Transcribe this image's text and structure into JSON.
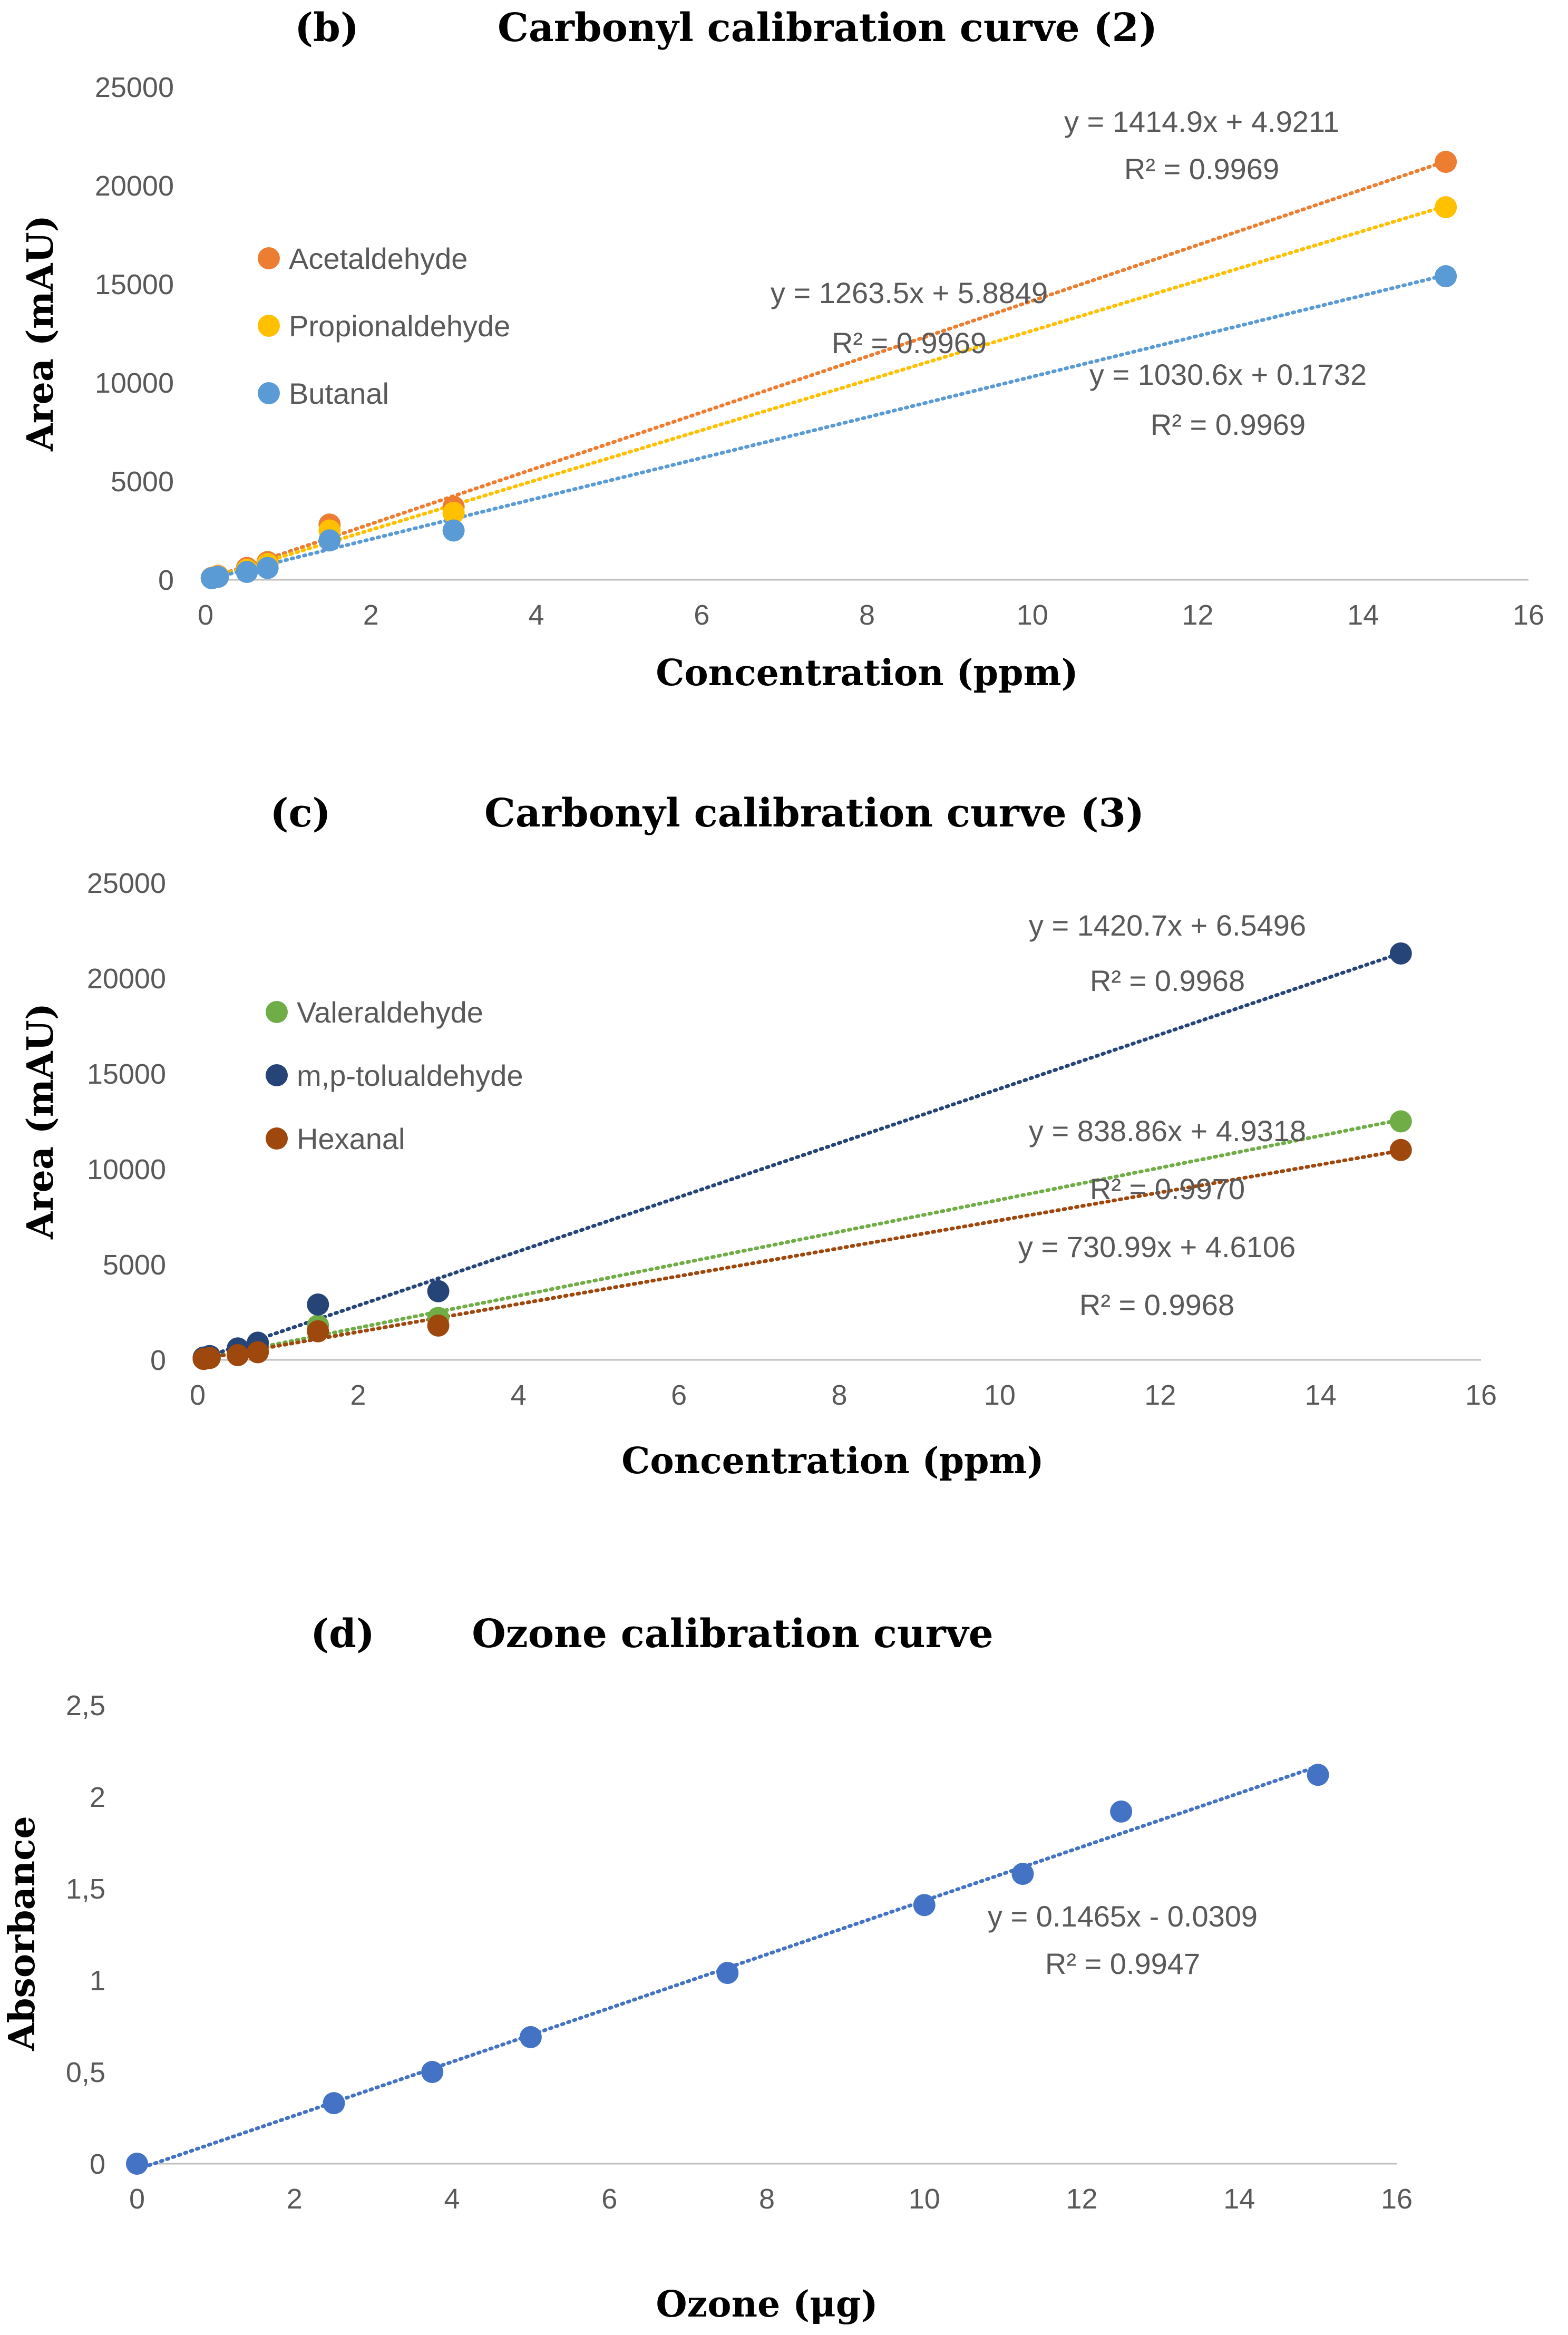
{
  "chart_data": [
    {
      "type": "scatter",
      "panel": "(b)",
      "title": "Carbonyl calibration curve (2)",
      "xlabel": "Concentration (ppm)",
      "ylabel": "Area (mAU)",
      "xlim": [
        0,
        16
      ],
      "ylim": [
        0,
        25000
      ],
      "xticks": [
        "0",
        "2",
        "4",
        "6",
        "8",
        "10",
        "12",
        "14",
        "16"
      ],
      "yticks": [
        "0",
        "5000",
        "10000",
        "15000",
        "20000",
        "25000"
      ],
      "grid": false,
      "legend_position": "left",
      "trendline": "linear, dotted",
      "series": [
        {
          "name": "Acetaldehyde",
          "color": "#ed7d31",
          "x": [
            0.075,
            0.15,
            0.5,
            0.75,
            1.5,
            3,
            15
          ],
          "y": [
            100,
            200,
            600,
            900,
            2800,
            3700,
            21200
          ],
          "fit": {
            "slope": 1414.9,
            "intercept": 4.9211
          },
          "equation": "y = 1414.9x + 4.9211",
          "r2": "R² = 0.9969"
        },
        {
          "name": "Propionaldehyde",
          "color": "#ffc000",
          "x": [
            0.075,
            0.15,
            0.5,
            0.75,
            1.5,
            3,
            15
          ],
          "y": [
            90,
            180,
            500,
            800,
            2500,
            3400,
            18900
          ],
          "fit": {
            "slope": 1263.5,
            "intercept": 5.8849
          },
          "equation": "y = 1263.5x + 5.8849",
          "r2": "R² = 0.9969"
        },
        {
          "name": "Butanal",
          "color": "#5b9bd5",
          "x": [
            0.075,
            0.15,
            0.5,
            0.75,
            1.5,
            3,
            15
          ],
          "y": [
            80,
            150,
            400,
            600,
            2000,
            2500,
            15400
          ],
          "fit": {
            "slope": 1030.6,
            "intercept": 0.1732
          },
          "equation": "y = 1030.6x + 0.1732",
          "r2": "R² = 0.9969"
        }
      ]
    },
    {
      "type": "scatter",
      "panel": "(c)",
      "title": "Carbonyl calibration curve (3)",
      "xlabel": "Concentration (ppm)",
      "ylabel": "Area (mAU)",
      "xlim": [
        0,
        16
      ],
      "ylim": [
        0,
        25000
      ],
      "xticks": [
        "0",
        "2",
        "4",
        "6",
        "8",
        "10",
        "12",
        "14",
        "16"
      ],
      "yticks": [
        "0",
        "5000",
        "10000",
        "15000",
        "20000",
        "25000"
      ],
      "grid": false,
      "legend_position": "left",
      "trendline": "linear, dotted",
      "series": [
        {
          "name": "Valeraldehyde",
          "color": "#70ad47",
          "x": [
            0.075,
            0.15,
            0.5,
            0.75,
            1.5,
            3,
            15
          ],
          "y": [
            60,
            120,
            350,
            500,
            1800,
            2200,
            12500
          ],
          "fit": {
            "slope": 838.86,
            "intercept": 4.9318
          },
          "equation": "y = 838.86x + 4.9318",
          "r2": "R² = 0.9970"
        },
        {
          "name": "m,p-tolualdehyde",
          "color": "#264478",
          "x": [
            0.075,
            0.15,
            0.5,
            0.75,
            1.5,
            3,
            15
          ],
          "y": [
            120,
            200,
            600,
            900,
            2900,
            3600,
            21300
          ],
          "fit": {
            "slope": 1420.7,
            "intercept": 6.5496
          },
          "equation": "y = 1420.7x + 6.5496",
          "r2": "R² = 0.9968"
        },
        {
          "name": "Hexanal",
          "color": "#9e480e",
          "x": [
            0.075,
            0.15,
            0.5,
            0.75,
            1.5,
            3,
            15
          ],
          "y": [
            50,
            100,
            250,
            400,
            1500,
            1800,
            11000
          ],
          "fit": {
            "slope": 730.99,
            "intercept": 4.6106
          },
          "equation": "y = 730.99x + 4.6106",
          "r2": "R² = 0.9968"
        }
      ]
    },
    {
      "type": "scatter",
      "panel": "(d)",
      "title": "Ozone calibration curve",
      "xlabel": "Ozone (μg)",
      "ylabel": "Absorbance",
      "xlim": [
        0,
        16
      ],
      "ylim": [
        0,
        2.5
      ],
      "xticks": [
        "0",
        "2",
        "4",
        "6",
        "8",
        "10",
        "12",
        "14",
        "16"
      ],
      "yticks": [
        "0",
        "0,5",
        "1",
        "1,5",
        "2",
        "2,5"
      ],
      "grid": false,
      "legend_position": "none",
      "trendline": "linear, dotted",
      "series": [
        {
          "name": "Ozone",
          "color": "#4472c4",
          "x": [
            0,
            2.5,
            3.75,
            5,
            7.5,
            10,
            11.25,
            12.5,
            15
          ],
          "y": [
            0,
            0.33,
            0.5,
            0.69,
            1.04,
            1.41,
            1.58,
            1.92,
            2.12
          ],
          "fit": {
            "slope": 0.1465,
            "intercept": -0.0309
          },
          "equation": "y = 0.1465x - 0.0309",
          "r2": "R² = 0.9947"
        }
      ]
    }
  ]
}
